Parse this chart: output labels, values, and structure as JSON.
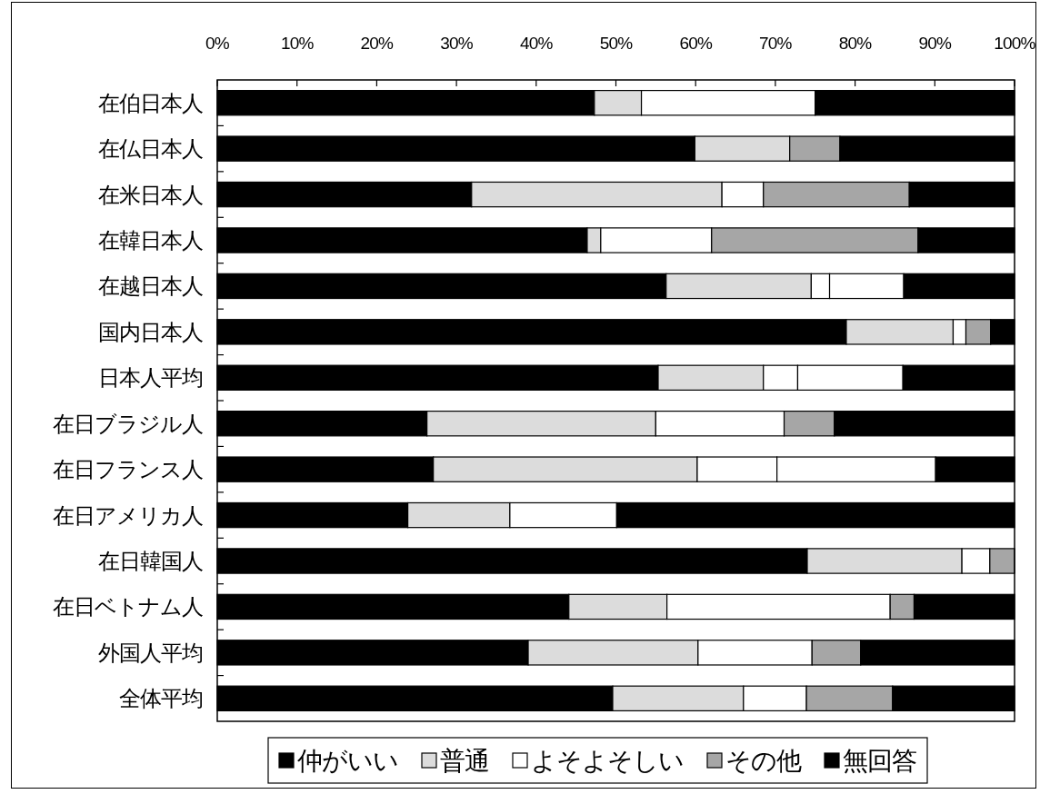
{
  "chart_data": {
    "type": "bar",
    "orientation": "horizontal",
    "stacked": true,
    "categories": [
      "在伯日本人",
      "在仏日本人",
      "在米日本人",
      "在韓日本人",
      "在越日本人",
      "国内日本人",
      "日本人平均",
      "在日ブラジル人",
      "在日フランス人",
      "在日アメリカ人",
      "在日韓国人",
      "在日ベトナム人",
      "外国人平均",
      "全体平均"
    ],
    "series": [
      {
        "name": "仲がいい",
        "color": "#000000",
        "values": [
          47.3,
          59.9,
          31.9,
          46.4,
          56.3,
          78.9,
          55.3,
          26.3,
          27.1,
          23.9,
          74.0,
          44.1,
          39.0,
          49.6
        ]
      },
      {
        "name": "普通",
        "color": "#dcdcdc",
        "values": [
          5.9,
          11.9,
          31.4,
          1.7,
          18.2,
          13.4,
          13.2,
          28.7,
          33.1,
          12.8,
          19.4,
          12.3,
          21.3,
          16.4
        ]
      },
      {
        "name": "よそよそしい",
        "color": "#ffffff",
        "values": [
          21.8,
          null,
          5.2,
          13.9,
          2.3,
          1.6,
          4.3,
          16.1,
          10.0,
          13.4,
          3.5,
          28.0,
          14.3,
          7.9
        ]
      },
      {
        "name": "その他",
        "color": "#a6a6a6",
        "colors": [
          null,
          "#a6a6a6",
          "#a6a6a6",
          "#a6a6a6",
          "#ffffff",
          "#a6a6a6",
          "#ffffff",
          "#a6a6a6",
          "#ffffff",
          null,
          "#a6a6a6",
          "#a6a6a6",
          "#a6a6a6",
          "#a6a6a6"
        ],
        "values": [
          null,
          6.3,
          18.3,
          25.9,
          9.3,
          3.1,
          13.2,
          6.3,
          19.9,
          null,
          3.1,
          3.0,
          6.1,
          10.8
        ]
      },
      {
        "name": "無回答",
        "color": "#000000",
        "values": [
          25.0,
          21.9,
          13.2,
          12.1,
          13.9,
          3.0,
          14.0,
          22.6,
          9.9,
          49.9,
          null,
          12.6,
          19.3,
          15.3
        ]
      }
    ],
    "xlim": [
      0,
      100
    ],
    "xticks": [
      {
        "value": 0,
        "label": "0%"
      },
      {
        "value": 10,
        "label": "10%"
      },
      {
        "value": 20,
        "label": "20%"
      },
      {
        "value": 30,
        "label": "30%"
      },
      {
        "value": 40,
        "label": "40%"
      },
      {
        "value": 50,
        "label": "50%"
      },
      {
        "value": 60,
        "label": "60%"
      },
      {
        "value": 70,
        "label": "70%"
      },
      {
        "value": 80,
        "label": "80%"
      },
      {
        "value": 90,
        "label": "90%"
      },
      {
        "value": 100,
        "label": "100%"
      }
    ],
    "legend": "bottom"
  }
}
